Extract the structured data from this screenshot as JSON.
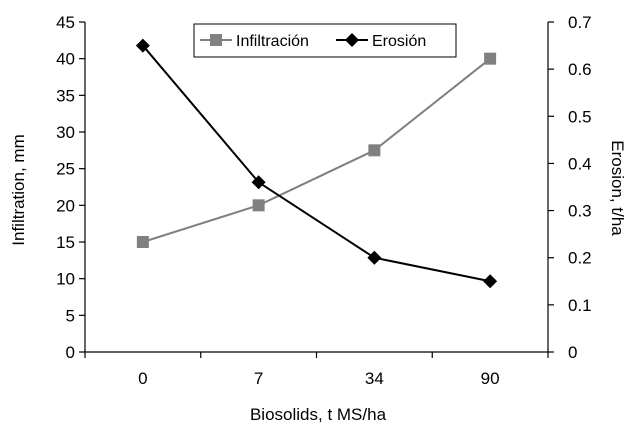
{
  "chart_data": {
    "type": "line",
    "categories": [
      "0",
      "7",
      "34",
      "90"
    ],
    "xlabel": "Biosolids, t MS/ha",
    "ylabel_left": "Infiltration,  mm",
    "ylabel_right": "Erosion,  t/ha",
    "ylim_left": [
      0,
      45
    ],
    "ylim_right": [
      0,
      0.7
    ],
    "yticks_left": [
      "0",
      "5",
      "10",
      "15",
      "20",
      "25",
      "30",
      "35",
      "40",
      "45"
    ],
    "yticks_right": [
      "0",
      "0.1",
      "0.2",
      "0.3",
      "0.4",
      "0.5",
      "0.6",
      "0.7"
    ],
    "grid": false,
    "legend_position": "top",
    "series": [
      {
        "name": "Infiltración",
        "axis": "left",
        "marker": "square",
        "color": "#808080",
        "values": [
          15,
          20,
          27.5,
          40
        ]
      },
      {
        "name": "Erosión",
        "axis": "right",
        "marker": "diamond",
        "color": "#000000",
        "values": [
          0.65,
          0.36,
          0.2,
          0.15
        ]
      }
    ]
  }
}
